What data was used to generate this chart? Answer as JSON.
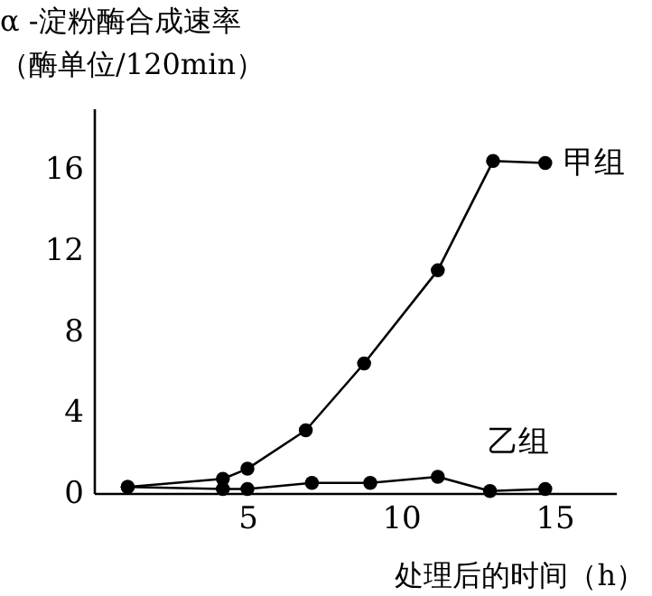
{
  "chart_data": {
    "type": "line",
    "ylabel": "α -淀粉酶合成速率",
    "annotations": [
      "（酶单位/120min）"
    ],
    "xlabel": "处理后的时间（h）",
    "xlim": [
      0,
      17
    ],
    "xticks": [
      5,
      10,
      15
    ],
    "ylim": [
      0,
      19
    ],
    "yticks": [
      0,
      4,
      8,
      12,
      16
    ],
    "grid": false,
    "legend": false,
    "marker": "circle",
    "line_style": "solid",
    "series": [
      {
        "name": "甲组",
        "color": "#000000",
        "x": [
          1.1,
          4.2,
          5.0,
          6.9,
          8.8,
          11.2,
          13.0,
          14.7
        ],
        "values": [
          0.3,
          0.7,
          1.2,
          3.1,
          6.4,
          11.0,
          16.4,
          16.3
        ]
      },
      {
        "name": "乙组",
        "color": "#000000",
        "x": [
          1.1,
          4.2,
          5.0,
          7.1,
          9.0,
          11.2,
          12.9,
          14.7
        ],
        "values": [
          0.3,
          0.2,
          0.2,
          0.5,
          0.5,
          0.8,
          0.1,
          0.2
        ]
      }
    ]
  }
}
